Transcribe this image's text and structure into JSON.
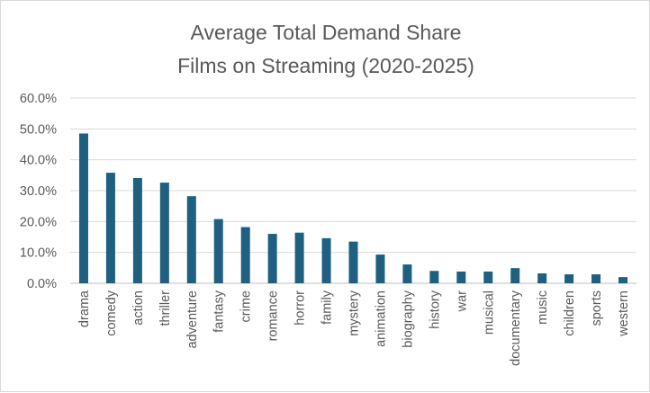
{
  "chart_data": {
    "type": "bar",
    "title_line1": "Average Total Demand Share",
    "title_line2": "Films on Streaming (2020-2025)",
    "xlabel": "",
    "ylabel": "",
    "ylim": [
      0,
      60
    ],
    "yticks": [
      "0.0%",
      "10.0%",
      "20.0%",
      "30.0%",
      "40.0%",
      "50.0%",
      "60.0%"
    ],
    "grid": true,
    "bar_color": "#1f5f7f",
    "categories": [
      "drama",
      "comedy",
      "action",
      "thriller",
      "adventure",
      "fantasy",
      "crime",
      "romance",
      "horror",
      "family",
      "mystery",
      "animation",
      "biography",
      "history",
      "war",
      "musical",
      "documentary",
      "music",
      "children",
      "sports",
      "western"
    ],
    "values": [
      48.5,
      35.8,
      34.1,
      32.6,
      28.2,
      20.8,
      18.2,
      16.0,
      16.4,
      14.6,
      13.5,
      9.3,
      6.1,
      4.0,
      3.8,
      3.8,
      4.9,
      3.2,
      2.9,
      2.9,
      2.0
    ]
  }
}
